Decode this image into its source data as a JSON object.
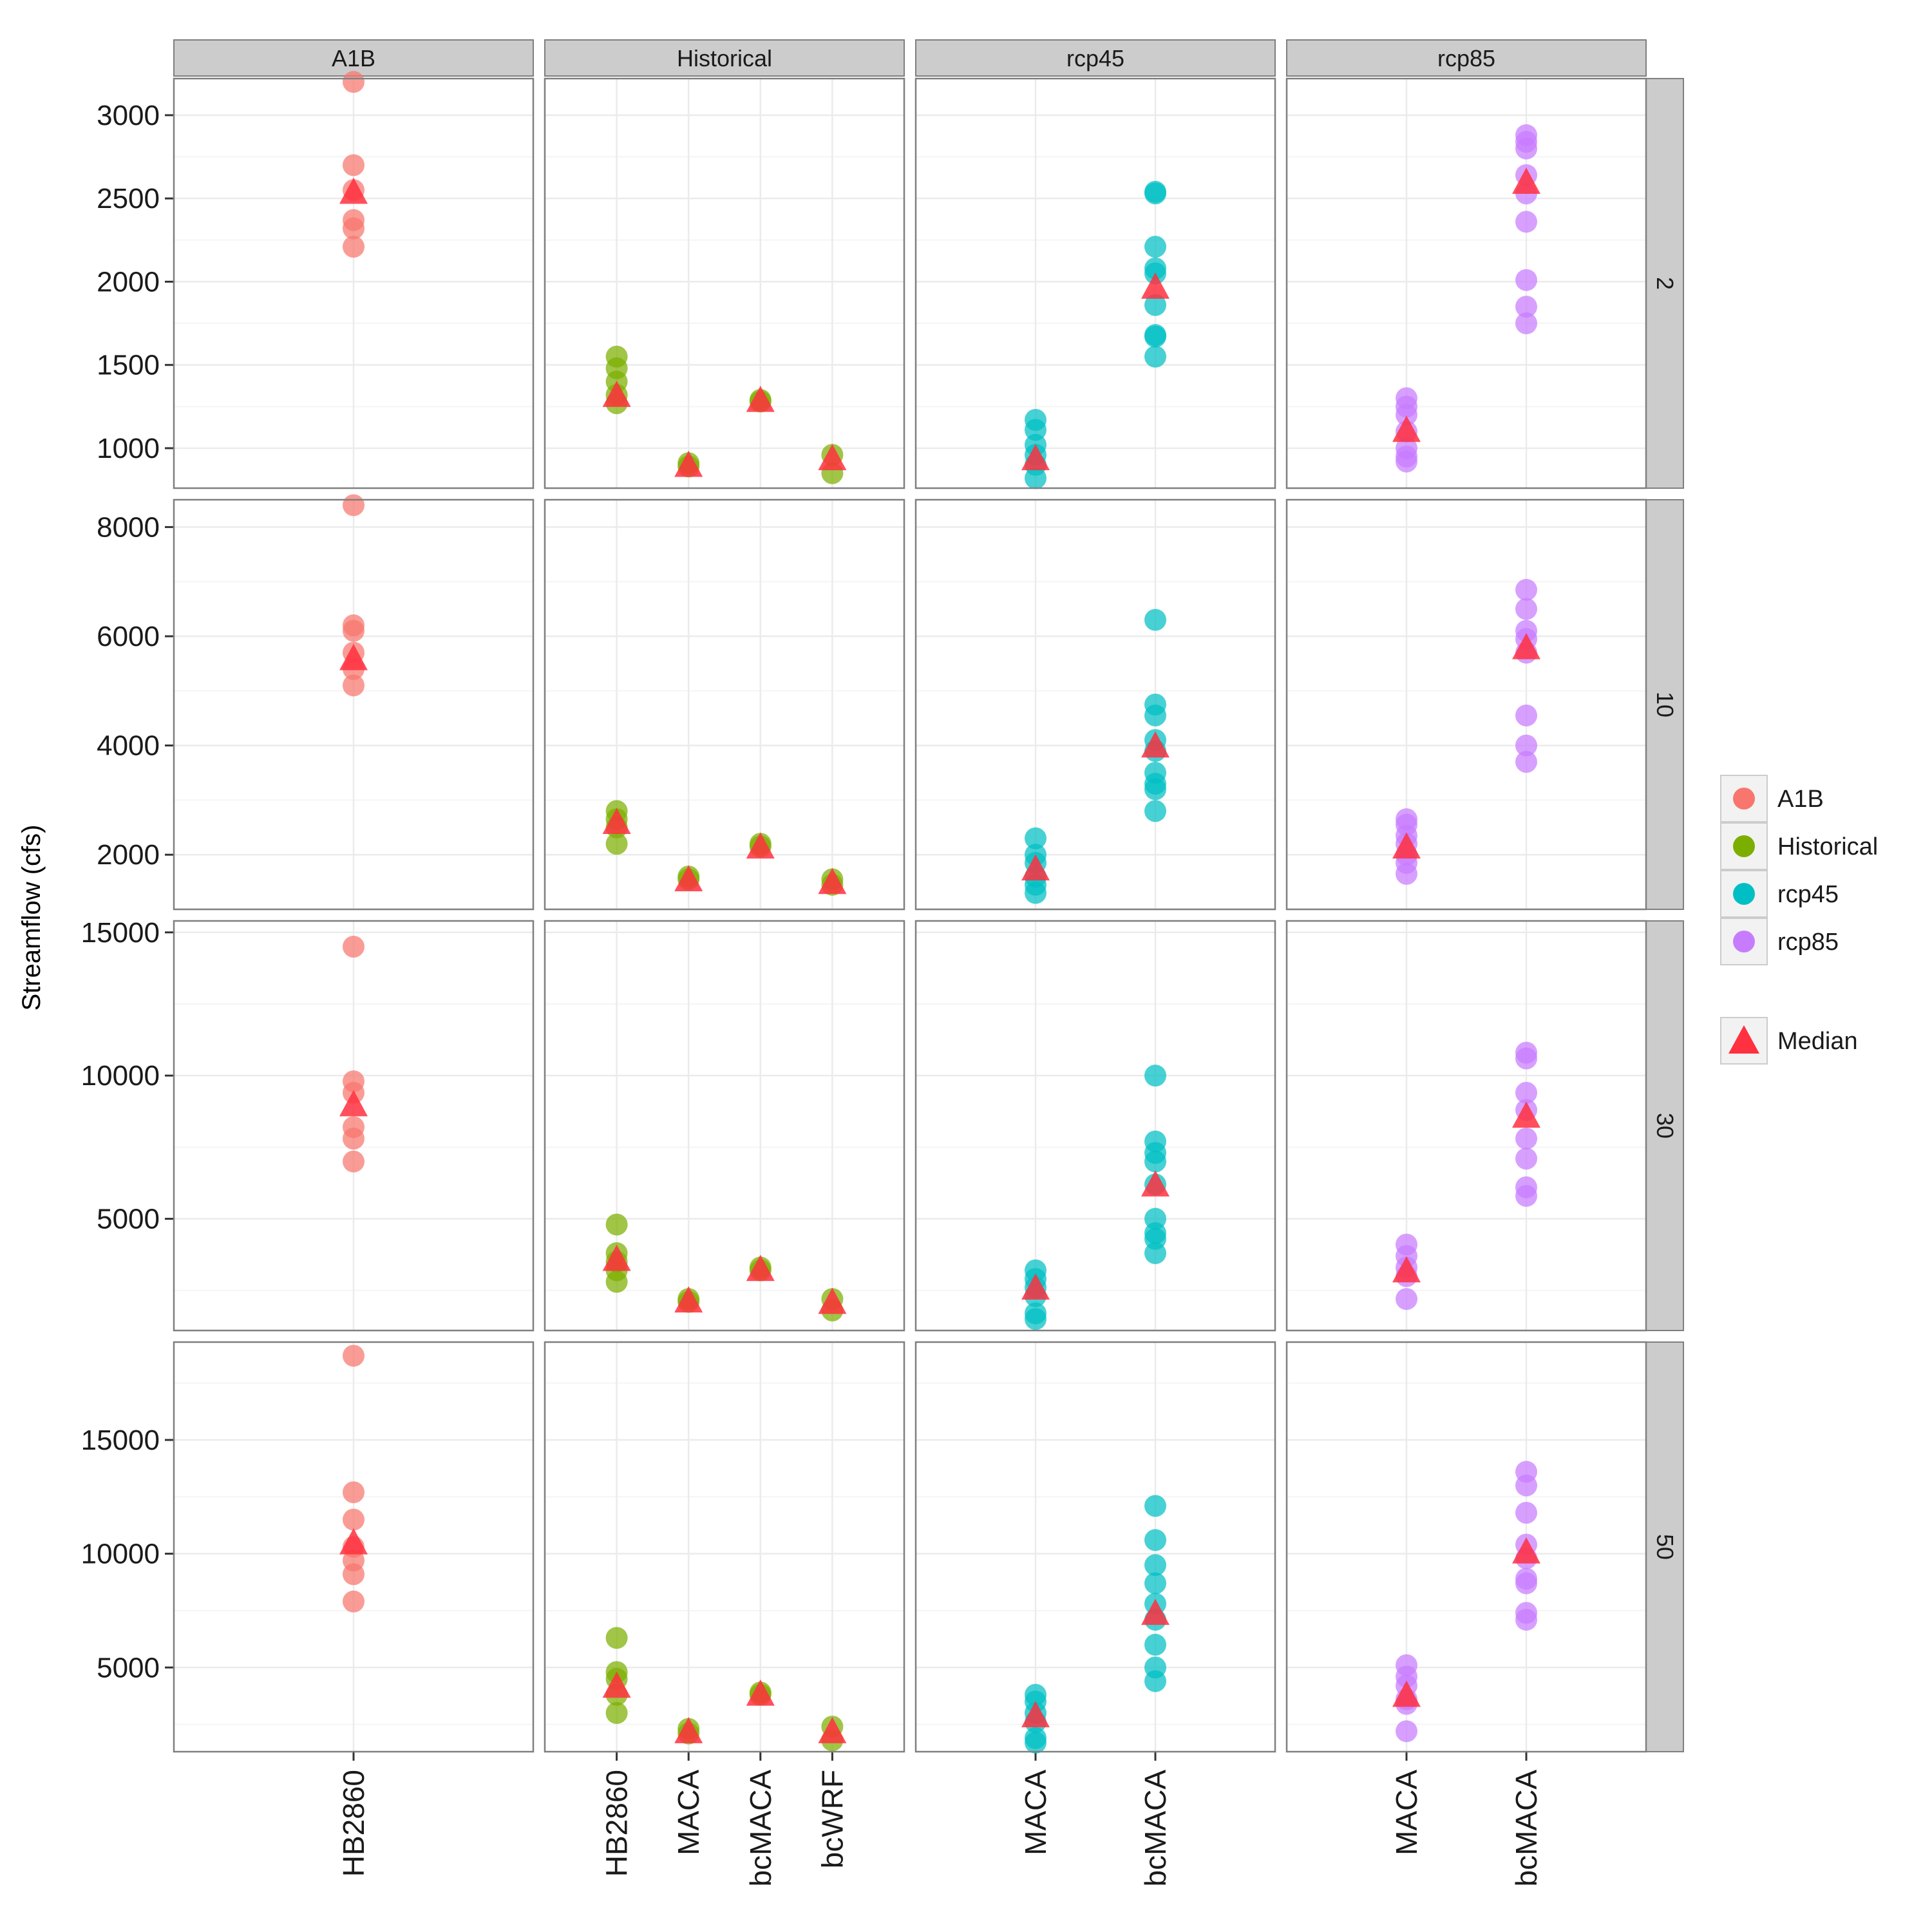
{
  "chart_data": {
    "type": "scatter",
    "title": "",
    "xlabel": "",
    "ylabel": "Streamflow (cfs)",
    "grid": true,
    "legend_position": "right",
    "legend": {
      "entries": [
        {
          "label": "A1B",
          "color": "#F8766D"
        },
        {
          "label": "Historical",
          "color": "#7CAE00"
        },
        {
          "label": "rcp45",
          "color": "#00BFC4"
        },
        {
          "label": "rcp85",
          "color": "#C77CFF"
        }
      ],
      "median_label": "Median",
      "median_color": "#FF3040"
    },
    "col_facets": [
      {
        "label": "A1B",
        "categories": [
          "HB2860"
        ],
        "color": "#F8766D"
      },
      {
        "label": "Historical",
        "categories": [
          "HB2860",
          "MACA",
          "bcMACA",
          "bcWRF"
        ],
        "color": "#7CAE00"
      },
      {
        "label": "rcp45",
        "categories": [
          "MACA",
          "bcMACA"
        ],
        "color": "#00BFC4"
      },
      {
        "label": "rcp85",
        "categories": [
          "MACA",
          "bcMACA"
        ],
        "color": "#C77CFF"
      }
    ],
    "row_facets": [
      {
        "label": "2",
        "ylim": [
          760,
          3220
        ],
        "yticks": [
          1000,
          1500,
          2000,
          2500,
          3000
        ],
        "minor_step": 250
      },
      {
        "label": "10",
        "ylim": [
          1000,
          8500
        ],
        "yticks": [
          2000,
          4000,
          6000,
          8000
        ],
        "minor_step": 1000
      },
      {
        "label": "30",
        "ylim": [
          1100,
          15400
        ],
        "yticks": [
          5000,
          10000,
          15000
        ],
        "minor_step": 2500
      },
      {
        "label": "50",
        "ylim": [
          1300,
          19300
        ],
        "yticks": [
          5000,
          10000,
          15000
        ],
        "minor_step": 2500
      }
    ],
    "panels": [
      [
        {
          "groups": [
            {
              "x": "HB2860",
              "y": [
                3200,
                2700,
                2550,
                2370,
                2320,
                2210
              ],
              "median": 2540
            }
          ]
        },
        {
          "groups": [
            {
              "x": "HB2860",
              "y": [
                1550,
                1480,
                1400,
                1320,
                1270
              ],
              "median": 1320
            },
            {
              "x": "MACA",
              "y": [
                910,
                890
              ],
              "median": 900
            },
            {
              "x": "bcMACA",
              "y": [
                1290,
                1280
              ],
              "median": 1290
            },
            {
              "x": "bcWRF",
              "y": [
                960,
                850
              ],
              "median": 940
            }
          ]
        },
        {
          "groups": [
            {
              "x": "MACA",
              "y": [
                1170,
                1110,
                1020,
                960,
                900,
                820
              ],
              "median": 940
            },
            {
              "x": "bcMACA",
              "y": [
                2540,
                2530,
                2210,
                2080,
                2050,
                1860,
                1680,
                1670,
                1550
              ],
              "median": 1970
            }
          ]
        },
        {
          "groups": [
            {
              "x": "MACA",
              "y": [
                1300,
                1250,
                1200,
                1100,
                1000,
                950,
                920
              ],
              "median": 1110
            },
            {
              "x": "bcMACA",
              "y": [
                2880,
                2840,
                2800,
                2640,
                2530,
                2360,
                2010,
                1850,
                1750
              ],
              "median": 2600
            }
          ]
        }
      ],
      [
        {
          "groups": [
            {
              "x": "HB2860",
              "y": [
                8400,
                6200,
                6100,
                5700,
                5400,
                5100
              ],
              "median": 5600
            }
          ]
        },
        {
          "groups": [
            {
              "x": "HB2860",
              "y": [
                2800,
                2650,
                2500,
                2200
              ],
              "median": 2600
            },
            {
              "x": "MACA",
              "y": [
                1600,
                1550
              ],
              "median": 1550
            },
            {
              "x": "bcMACA",
              "y": [
                2200,
                2150
              ],
              "median": 2150
            },
            {
              "x": "bcWRF",
              "y": [
                1550,
                1450
              ],
              "median": 1500
            }
          ]
        },
        {
          "groups": [
            {
              "x": "MACA",
              "y": [
                2300,
                2000,
                1850,
                1600,
                1450,
                1300
              ],
              "median": 1750
            },
            {
              "x": "bcMACA",
              "y": [
                6300,
                4750,
                4550,
                4100,
                3900,
                3500,
                3300,
                3200,
                2800
              ],
              "median": 4000
            }
          ]
        },
        {
          "groups": [
            {
              "x": "MACA",
              "y": [
                2650,
                2550,
                2350,
                2200,
                2000,
                1850,
                1650
              ],
              "median": 2150
            },
            {
              "x": "bcMACA",
              "y": [
                6850,
                6500,
                6100,
                5950,
                5700,
                4550,
                4000,
                3700
              ],
              "median": 5800
            }
          ]
        }
      ],
      [
        {
          "groups": [
            {
              "x": "HB2860",
              "y": [
                14500,
                9800,
                9400,
                8200,
                7800,
                7000
              ],
              "median": 9000
            }
          ]
        },
        {
          "groups": [
            {
              "x": "HB2860",
              "y": [
                4800,
                3800,
                3500,
                3200,
                2800
              ],
              "median": 3600
            },
            {
              "x": "MACA",
              "y": [
                2200,
                2100
              ],
              "median": 2150
            },
            {
              "x": "bcMACA",
              "y": [
                3300,
                3200
              ],
              "median": 3250
            },
            {
              "x": "bcWRF",
              "y": [
                2200,
                1800
              ],
              "median": 2100
            }
          ]
        },
        {
          "groups": [
            {
              "x": "MACA",
              "y": [
                3200,
                2900,
                2600,
                2300,
                1700,
                1500
              ],
              "median": 2600
            },
            {
              "x": "bcMACA",
              "y": [
                10000,
                7700,
                7300,
                7000,
                6200,
                5000,
                4500,
                4300,
                3800
              ],
              "median": 6200
            }
          ]
        },
        {
          "groups": [
            {
              "x": "MACA",
              "y": [
                4100,
                3700,
                3300,
                3000,
                2200
              ],
              "median": 3200
            },
            {
              "x": "bcMACA",
              "y": [
                10800,
                10600,
                9400,
                8800,
                7800,
                7100,
                6100,
                5800
              ],
              "median": 8600
            }
          ]
        }
      ],
      [
        {
          "groups": [
            {
              "x": "HB2860",
              "y": [
                18700,
                12700,
                11500,
                10300,
                9700,
                9100,
                7900
              ],
              "median": 10500
            }
          ]
        },
        {
          "groups": [
            {
              "x": "HB2860",
              "y": [
                6300,
                4800,
                4500,
                3800,
                3000
              ],
              "median": 4200
            },
            {
              "x": "MACA",
              "y": [
                2300,
                2100
              ],
              "median": 2200
            },
            {
              "x": "bcMACA",
              "y": [
                3900,
                3800
              ],
              "median": 3850
            },
            {
              "x": "bcWRF",
              "y": [
                2400,
                1800
              ],
              "median": 2200
            }
          ]
        },
        {
          "groups": [
            {
              "x": "MACA",
              "y": [
                3800,
                3500,
                3000,
                2600,
                1900,
                1700
              ],
              "median": 2900
            },
            {
              "x": "bcMACA",
              "y": [
                12100,
                10600,
                9500,
                8700,
                7800,
                7100,
                6000,
                5000,
                4400
              ],
              "median": 7400
            }
          ]
        },
        {
          "groups": [
            {
              "x": "MACA",
              "y": [
                5100,
                4600,
                4200,
                3600,
                3400,
                2200
              ],
              "median": 3800
            },
            {
              "x": "bcMACA",
              "y": [
                13600,
                13000,
                11800,
                10400,
                9800,
                8900,
                8700,
                7400,
                7100
              ],
              "median": 10100
            }
          ]
        }
      ]
    ]
  }
}
